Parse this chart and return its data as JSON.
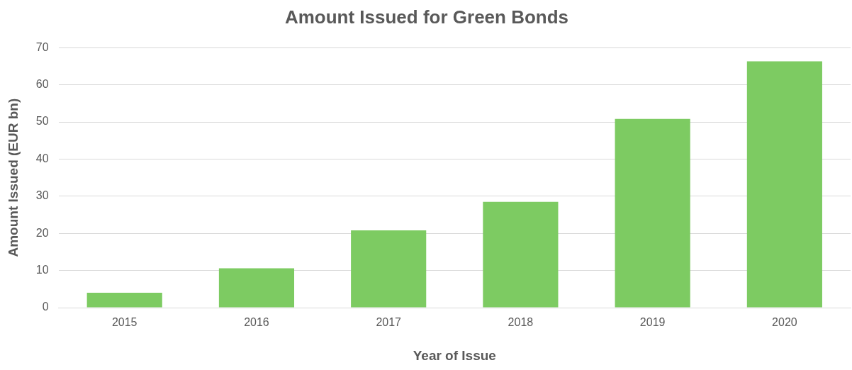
{
  "chart_data": {
    "type": "bar",
    "title": "Amount Issued for Green Bonds",
    "xlabel": "Year of Issue",
    "ylabel": "Amount Issued (EUR bn)",
    "categories": [
      "2015",
      "2016",
      "2017",
      "2018",
      "2019",
      "2020"
    ],
    "values": [
      4.0,
      10.6,
      20.8,
      28.5,
      50.8,
      66.3
    ],
    "color": "#7dcb62",
    "ylim": [
      0,
      70
    ],
    "yticks": [
      0,
      10,
      20,
      30,
      40,
      50,
      60,
      70
    ],
    "grid": "y",
    "legend": false
  }
}
